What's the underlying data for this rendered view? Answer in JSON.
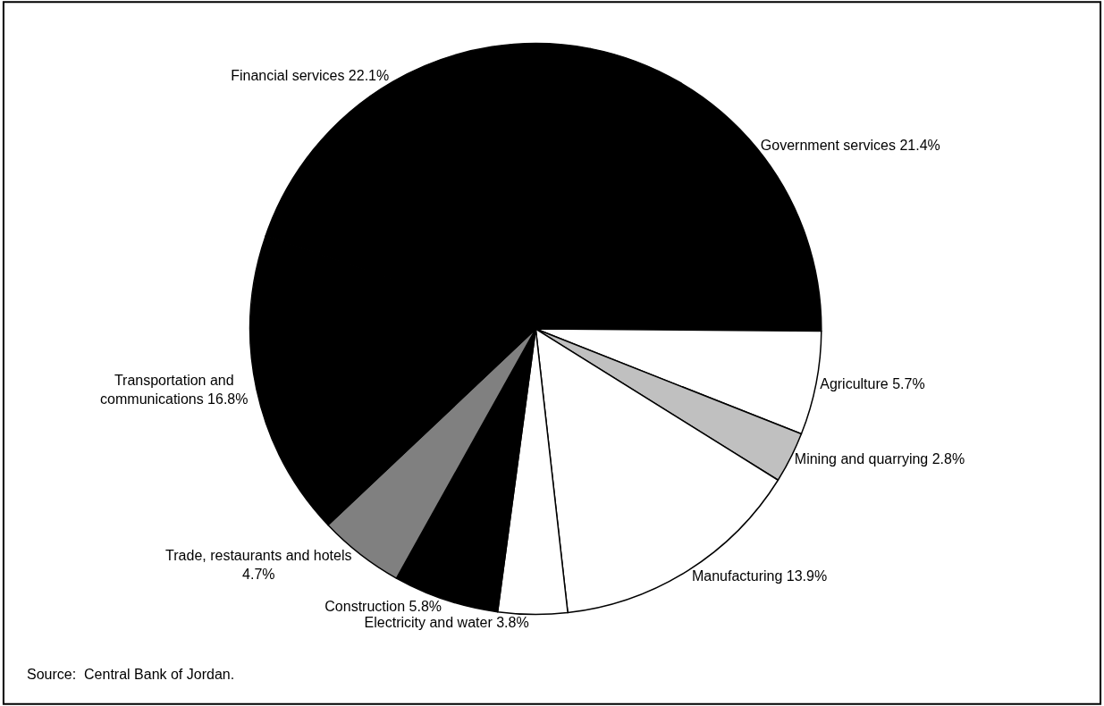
{
  "chart_data": {
    "type": "pie",
    "categories": [
      "Government services",
      "Agriculture",
      "Mining and quarrying",
      "Manufacturing",
      "Electricity and water",
      "Construction",
      "Trade, restaurants and hotels",
      "Transportation and communications",
      "Financial services"
    ],
    "values": [
      21.4,
      5.7,
      2.8,
      13.9,
      3.8,
      5.8,
      4.7,
      16.8,
      22.1
    ],
    "value_labels": [
      "21.4%",
      "5.7%",
      "2.8%",
      "13.9%",
      "3.8%",
      "5.8%",
      "4.7%",
      "16.8%",
      "22.1%"
    ],
    "colors": [
      "#000000",
      "#ffffff",
      "#c0c0c0",
      "#ffffff",
      "#ffffff",
      "#000000",
      "#808080",
      "#000000",
      "#000000"
    ],
    "annotations": [
      "Source:  Central Bank of Jordan."
    ],
    "legend": false
  }
}
